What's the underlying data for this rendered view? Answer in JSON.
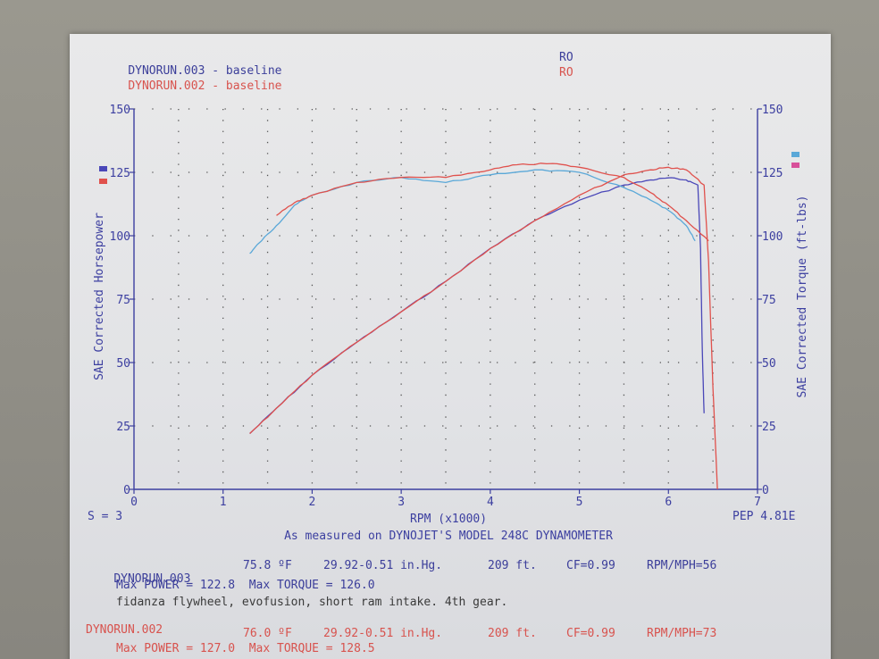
{
  "header": {
    "run1": {
      "name": "DYNORUN.003",
      "sep": "-",
      "label": "baseline",
      "code": "RO"
    },
    "run2": {
      "name": "DYNORUN.002",
      "sep": "-",
      "label": "baseline",
      "code": "RO"
    }
  },
  "footer_chart": {
    "smoothing": "S = 3",
    "measured": "As measured on DYNOJET'S MODEL 248C DYNAMOMETER",
    "pep": "PEP 4.81E"
  },
  "runs": [
    {
      "name": "DYNORUN.003",
      "temp": "75.8 ºF",
      "pressure": "29.92-0.51 in.Hg.",
      "elevation": "209 ft.",
      "cf": "CF=0.99",
      "rpm_mph": "RPM/MPH=56",
      "max_line": "Max POWER = 122.8  Max TORQUE = 126.0",
      "note": "fidanza flywheel, evofusion, short ram intake. 4th gear."
    },
    {
      "name": "DYNORUN.002",
      "temp": "76.0 ºF",
      "pressure": "29.92-0.51 in.Hg.",
      "elevation": "209 ft.",
      "cf": "CF=0.99",
      "rpm_mph": "RPM/MPH=73",
      "max_line": "Max POWER = 127.0  Max TORQUE = 128.5"
    }
  ],
  "colors": {
    "run003": "#4a47b8",
    "run002": "#e0514c",
    "run003_torque": "#5aa8d8",
    "run002_torque": "#e0514c",
    "axis": "#3c3fa0",
    "text": "#3c3fa0"
  },
  "chart_data": {
    "type": "line",
    "xlabel": "RPM (x1000)",
    "ylabel": "SAE Corrected Horsepower",
    "y2label": "SAE Corrected Torque (ft-lbs)",
    "xlim": [
      0,
      7
    ],
    "ylim": [
      0,
      150
    ],
    "y2lim": [
      0,
      150
    ],
    "x_ticks": [
      "0",
      "1",
      "2",
      "3",
      "4",
      "5",
      "6",
      "7"
    ],
    "y_ticks": [
      "0",
      "25",
      "50",
      "75",
      "100",
      "125",
      "150"
    ],
    "y2_ticks": [
      "0",
      "25",
      "50",
      "75",
      "100",
      "125",
      "150"
    ],
    "grid": true,
    "series": [
      {
        "name": "DYNORUN.003",
        "quantity": "power",
        "axis": "left",
        "color": "#4a47b8",
        "x": [
          1.3,
          1.6,
          2.0,
          2.5,
          3.0,
          3.5,
          4.0,
          4.5,
          5.0,
          5.5,
          5.8,
          6.0,
          6.2,
          6.33,
          6.36,
          6.38,
          6.4
        ],
        "y": [
          22,
          32,
          45,
          58,
          70,
          82,
          95,
          106,
          114,
          120,
          122,
          122.8,
          122,
          120,
          95,
          55,
          30
        ]
      },
      {
        "name": "DYNORUN.003",
        "quantity": "torque",
        "axis": "right",
        "color": "#5aa8d8",
        "x": [
          1.3,
          1.4,
          1.6,
          1.8,
          2.0,
          2.5,
          3.0,
          3.5,
          4.0,
          4.5,
          5.0,
          5.5,
          5.8,
          6.0,
          6.2,
          6.3
        ],
        "y": [
          93,
          97,
          104,
          112,
          116,
          121,
          123,
          121,
          124,
          126,
          125,
          119,
          114,
          110,
          104,
          98
        ]
      },
      {
        "name": "DYNORUN.002",
        "quantity": "power",
        "axis": "left",
        "color": "#e0514c",
        "x": [
          1.3,
          1.6,
          2.0,
          2.5,
          3.0,
          3.5,
          4.0,
          4.5,
          5.0,
          5.5,
          5.8,
          6.0,
          6.2,
          6.4,
          6.45,
          6.5,
          6.55
        ],
        "y": [
          22,
          32,
          45,
          58,
          70,
          82,
          95,
          106,
          116,
          124,
          126,
          127,
          126,
          120,
          90,
          40,
          0
        ]
      },
      {
        "name": "DYNORUN.002",
        "quantity": "torque",
        "axis": "right",
        "color": "#e0514c",
        "x": [
          1.6,
          1.8,
          2.0,
          2.5,
          3.0,
          3.5,
          4.0,
          4.3,
          4.7,
          5.0,
          5.5,
          5.8,
          6.0,
          6.2,
          6.45
        ],
        "y": [
          108,
          113,
          116,
          121,
          123,
          123,
          126,
          128,
          128.5,
          127,
          123,
          117,
          112,
          106,
          98
        ]
      }
    ]
  }
}
